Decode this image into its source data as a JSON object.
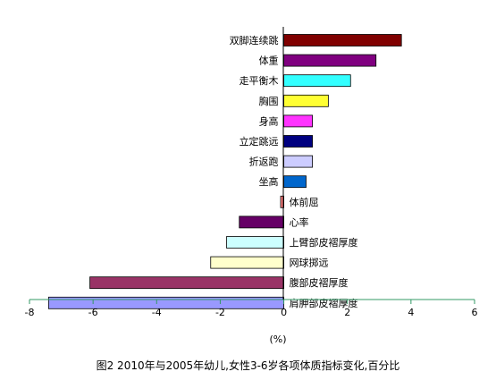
{
  "chart_data": {
    "type": "bar",
    "orientation": "horizontal",
    "categories": [
      "双脚连续跳",
      "体重",
      "走平衡木",
      "胸围",
      "身高",
      "立定跳远",
      "折返跑",
      "坐高",
      "体前屈",
      "心率",
      "上臂部皮褶厚度",
      "网球掷远",
      "腹部皮褶厚度",
      "肩胛部皮褶厚度"
    ],
    "values": [
      3.7,
      2.9,
      2.1,
      1.4,
      0.9,
      0.9,
      0.9,
      0.7,
      -0.1,
      -1.4,
      -1.8,
      -2.3,
      -6.1,
      -7.4
    ],
    "colors": [
      "#800000",
      "#800080",
      "#33ffff",
      "#ffff33",
      "#ff33ff",
      "#000080",
      "#ccccff",
      "#0066cc",
      "#ff8080",
      "#660066",
      "#ccffff",
      "#ffffcc",
      "#993366",
      "#9999ff"
    ],
    "xlim": [
      -8,
      6
    ],
    "xticks": [
      -8,
      -6,
      -4,
      -2,
      0,
      2,
      4,
      6
    ],
    "xlabel": "(%)",
    "ylabel": "",
    "title": "图2 2010年与2005年幼儿,女性3-6岁各项体质指标变化,百分比",
    "legend": "none",
    "grid": false
  }
}
